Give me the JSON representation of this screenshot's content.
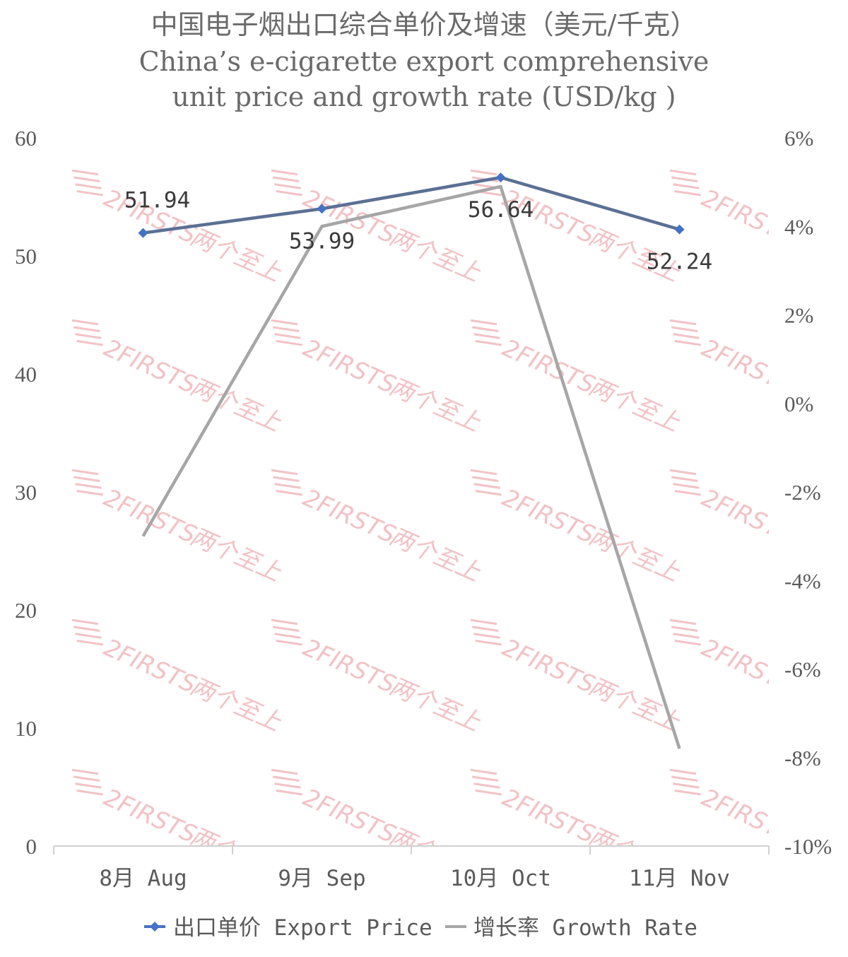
{
  "chart_data": {
    "type": "line",
    "title_lines": [
      "中国电子烟出口综合单价及增速（美元/千克）",
      "China’s e-cigarette export comprehensive",
      "unit price and growth rate (USD/kg )"
    ],
    "categories": [
      "8月 Aug",
      "9月 Sep",
      "10月 Oct",
      "11月 Nov"
    ],
    "series": [
      {
        "name": "出口单价 Export Price",
        "axis": "left",
        "color": "#5b7094",
        "marker_color": "#4472c4",
        "values": [
          51.94,
          53.99,
          56.64,
          52.24
        ],
        "labels": [
          "51.94",
          "53.99",
          "56.64",
          "52.24"
        ]
      },
      {
        "name": "增长率 Growth Rate",
        "axis": "right",
        "color": "#a6a6a6",
        "values": [
          -3.0,
          4.0,
          4.9,
          -7.8
        ]
      }
    ],
    "y_left": {
      "min": 0,
      "max": 60,
      "ticks": [
        "0",
        "10",
        "20",
        "30",
        "40",
        "50",
        "60"
      ]
    },
    "y_right": {
      "min": -10,
      "max": 6,
      "ticks": [
        "-10%",
        "-8%",
        "-6%",
        "-4%",
        "-2%",
        "0%",
        "2%",
        "4%",
        "6%"
      ]
    },
    "grid": false,
    "legend_position": "bottom"
  },
  "watermark": {
    "text": "2FIRSTS",
    "suffix": "两个至上",
    "color": "#f2c2c6"
  }
}
